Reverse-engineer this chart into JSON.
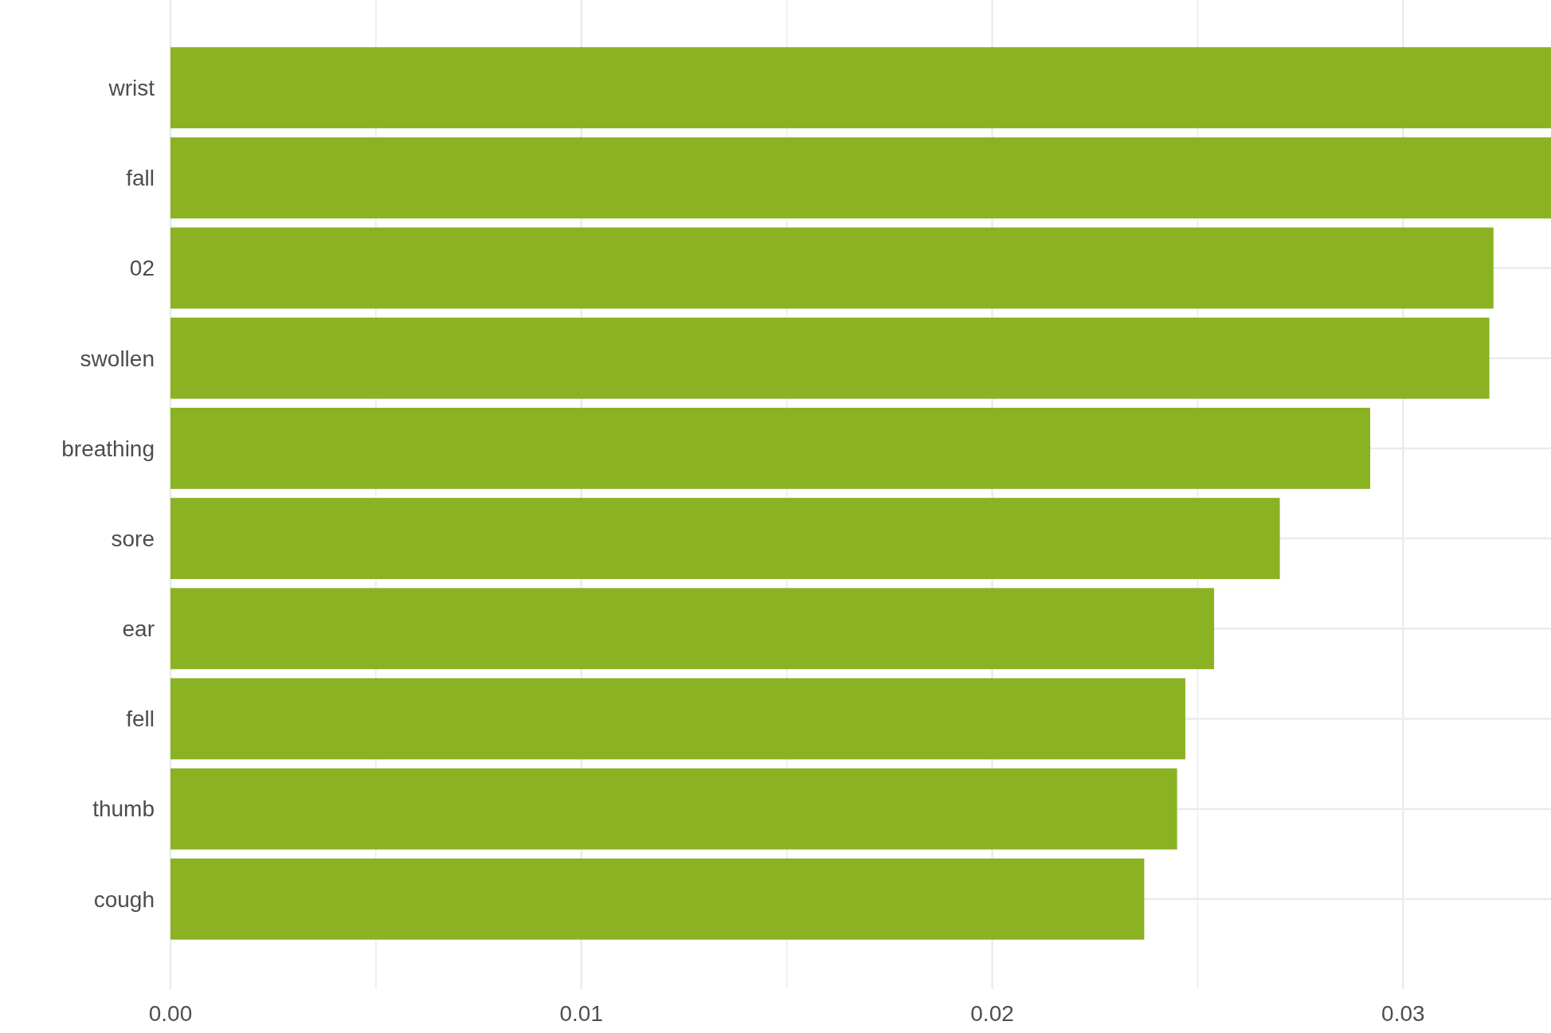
{
  "chart_data": {
    "type": "bar",
    "orientation": "horizontal",
    "categories": [
      "wrist",
      "fall",
      "02",
      "swollen",
      "breathing",
      "sore",
      "ear",
      "fell",
      "thumb",
      "cough"
    ],
    "values": [
      0.0336,
      0.0336,
      0.0322,
      0.0321,
      0.0292,
      0.027,
      0.0254,
      0.0247,
      0.0245,
      0.0237
    ],
    "color": "#86b01c",
    "xlim": [
      0,
      0.0336
    ],
    "xticks": [
      {
        "value": 0,
        "label": "0.00"
      },
      {
        "value": 0.005,
        "label": null
      },
      {
        "value": 0.01,
        "label": "0.01"
      },
      {
        "value": 0.015,
        "label": null
      },
      {
        "value": 0.02,
        "label": "0.02"
      },
      {
        "value": 0.025,
        "label": null
      },
      {
        "value": 0.03,
        "label": "0.03"
      }
    ],
    "grid": true
  }
}
